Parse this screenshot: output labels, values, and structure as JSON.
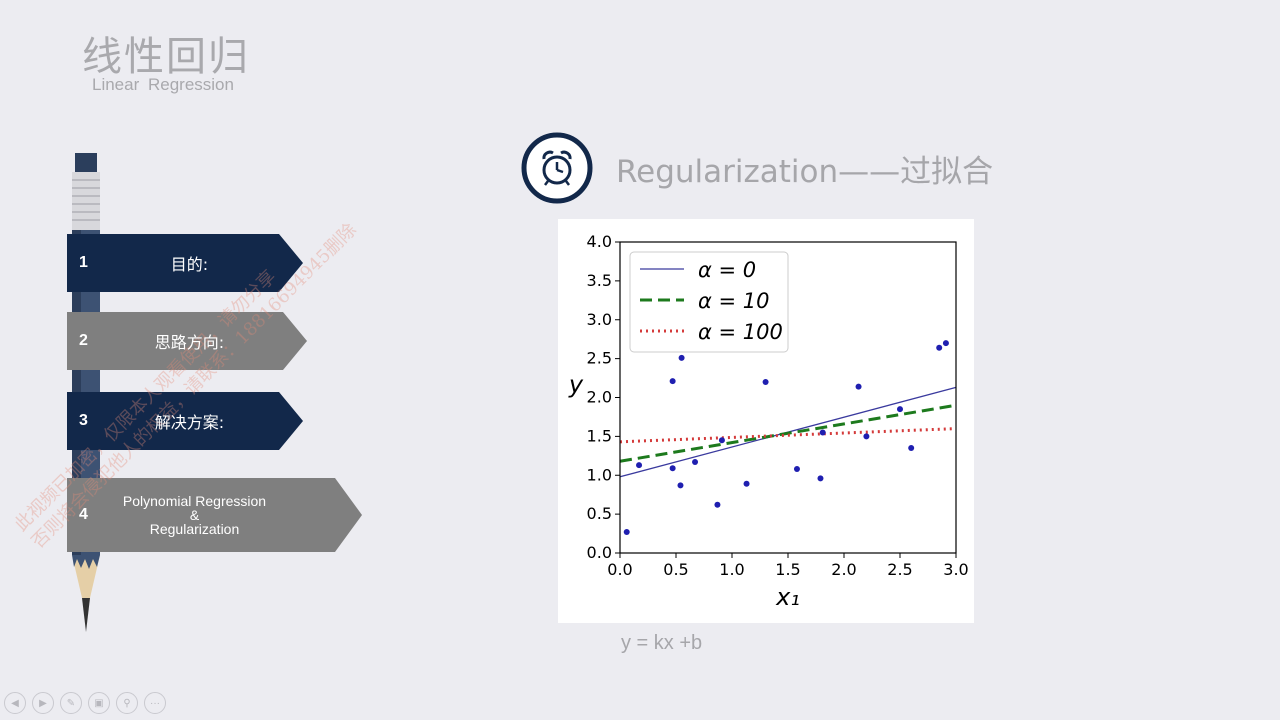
{
  "header": {
    "title_cn": "线性回归",
    "title_en": "Linear Regression"
  },
  "menu": {
    "items": [
      {
        "num": "1",
        "label": "目的:",
        "color": "#12284a",
        "active": true
      },
      {
        "num": "2",
        "label": "思路方向:",
        "color": "#7f7f7f",
        "active": false
      },
      {
        "num": "3",
        "label": "解决方案:",
        "color": "#12284a",
        "active": true
      },
      {
        "num": "4",
        "label_lines": [
          "Polynomial Regression",
          "&",
          "Regularization"
        ],
        "color": "#7f7f7f",
        "active": false
      }
    ]
  },
  "section": {
    "icon": "alarm-clock-icon",
    "title": "Regularization——过拟合"
  },
  "formula": "y = kx +b",
  "watermark": {
    "lines": [
      "此视频已加密，仅限本人观看使用，请勿分享",
      "否则将会侵犯他人的权益，请联系：18816694945删除"
    ]
  },
  "player_controls": [
    "prev-icon",
    "next-icon",
    "pen-icon",
    "screen-icon",
    "zoom-icon",
    "more-icon"
  ],
  "chart_data": {
    "type": "scatter",
    "xlabel": "x₁",
    "ylabel": "y",
    "xlim": [
      0.0,
      3.0
    ],
    "ylim": [
      0.0,
      4.0
    ],
    "xticks": [
      "0.0",
      "0.5",
      "1.0",
      "1.5",
      "2.0",
      "2.5",
      "3.0"
    ],
    "yticks": [
      "0.0",
      "0.5",
      "1.0",
      "1.5",
      "2.0",
      "2.5",
      "3.0",
      "3.5",
      "4.0"
    ],
    "grid": false,
    "legend_position": "top-left",
    "points": [
      [
        0.06,
        0.27
      ],
      [
        0.17,
        1.13
      ],
      [
        0.47,
        2.21
      ],
      [
        0.47,
        1.09
      ],
      [
        0.54,
        0.87
      ],
      [
        0.55,
        2.51
      ],
      [
        0.67,
        1.17
      ],
      [
        0.87,
        0.62
      ],
      [
        0.91,
        1.45
      ],
      [
        1.13,
        0.89
      ],
      [
        1.3,
        2.2
      ],
      [
        1.58,
        1.08
      ],
      [
        1.79,
        0.96
      ],
      [
        1.81,
        1.55
      ],
      [
        2.13,
        2.14
      ],
      [
        2.2,
        1.5
      ],
      [
        2.5,
        1.85
      ],
      [
        2.6,
        1.35
      ],
      [
        2.85,
        2.64
      ],
      [
        2.91,
        2.7
      ]
    ],
    "point_color": "#1f1fb0",
    "series": [
      {
        "name": "α = 0",
        "style": "solid",
        "color": "#3a3a9e",
        "x": [
          0.0,
          3.0
        ],
        "y": [
          0.98,
          2.13
        ]
      },
      {
        "name": "α = 10",
        "style": "dashed",
        "color": "#1d7a1d",
        "x": [
          0.0,
          3.0
        ],
        "y": [
          1.18,
          1.9
        ]
      },
      {
        "name": "α = 100",
        "style": "dotted",
        "color": "#d43a3a",
        "x": [
          0.0,
          3.0
        ],
        "y": [
          1.43,
          1.6
        ]
      }
    ]
  }
}
